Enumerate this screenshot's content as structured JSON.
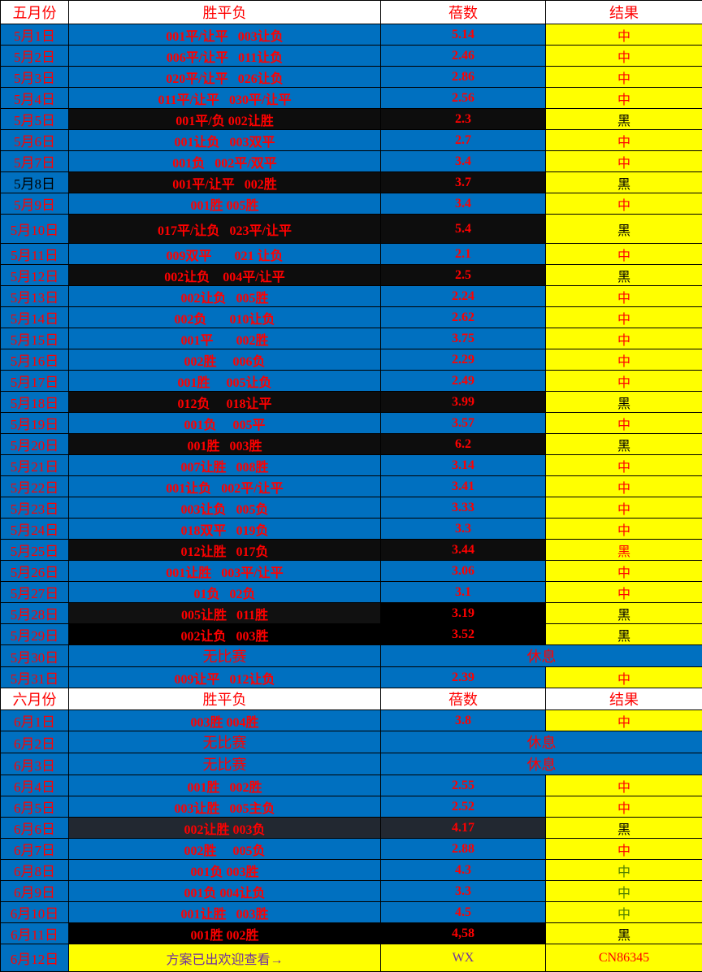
{
  "colors": {
    "blue": "#0070c0",
    "yellow": "#ffff00",
    "red": "#ff0000",
    "dark": "#0d0d0d",
    "black": "#000000",
    "slate": "#222831",
    "green": "#4f7f00",
    "purple": "#7030a0"
  },
  "may_header": {
    "month": "五月份",
    "picks": "胜平负",
    "odds": "蓓数",
    "result": "结果"
  },
  "may_rows": [
    {
      "date": "5月1日",
      "picks": "001平/让平   003让负",
      "odds": "5.14",
      "result": "中",
      "bg": "#0070c0",
      "result_color": "#ff0000"
    },
    {
      "date": "5月2日",
      "picks": "006平/让平   011让负",
      "odds": "2.46",
      "result": "中",
      "bg": "#0070c0",
      "result_color": "#ff0000"
    },
    {
      "date": "5月3日",
      "picks": "020平/让平   026让负",
      "odds": "2.86",
      "result": "中",
      "bg": "#0070c0",
      "result_color": "#ff0000"
    },
    {
      "date": "5月4日",
      "picks": "011平/让平   030平/让平",
      "odds": "2.56",
      "result": "中",
      "bg": "#0070c0",
      "result_color": "#ff0000"
    },
    {
      "date": "5月5日",
      "picks": "001平/负 002让胜",
      "odds": "2.3",
      "result": "黑",
      "bg": "#0d0d0d",
      "result_color": "#000000"
    },
    {
      "date": "5月6日",
      "picks": "001让负   003双平",
      "odds": "2.7",
      "result": "中",
      "bg": "#0070c0",
      "result_color": "#ff0000"
    },
    {
      "date": "5月7日",
      "picks": "001负   002平/双平",
      "odds": "3.4",
      "result": "中",
      "bg": "#0070c0",
      "result_color": "#ff0000"
    },
    {
      "date": "5月8日",
      "picks": "001平/让平   002胜",
      "odds": "3.7",
      "result": "黑",
      "bg": "#0d0d0d",
      "result_color": "#000000",
      "date_color": "#000000"
    },
    {
      "date": "5月9日",
      "picks": "001胜 005胜",
      "odds": "3.4",
      "result": "中",
      "bg": "#0070c0",
      "result_color": "#ff0000"
    },
    {
      "date": "5月10日",
      "picks": "017平/让负   023平/让平",
      "odds": "5.4",
      "result": "黑",
      "bg": "#0d0d0d",
      "result_color": "#000000",
      "tall": true
    },
    {
      "date": "5月11日",
      "picks": "009双平       021 让负",
      "odds": "2.1",
      "result": "中",
      "bg": "#0070c0",
      "result_color": "#ff0000"
    },
    {
      "date": "5月12日",
      "picks": "002让负    004平/让平",
      "odds": "2.5",
      "result": "黑",
      "bg": "#0d0d0d",
      "result_color": "#000000"
    },
    {
      "date": "5月13日",
      "picks": "002让负   005胜",
      "odds": "2.24",
      "result": "中",
      "bg": "#0070c0",
      "result_color": "#ff0000"
    },
    {
      "date": "5月14日",
      "picks": "002负       010让负",
      "odds": "2.62",
      "result": "中",
      "bg": "#0070c0",
      "result_color": "#ff0000"
    },
    {
      "date": "5月15日",
      "picks": "001平       002胜",
      "odds": "3.75",
      "result": "中",
      "bg": "#0070c0",
      "result_color": "#ff0000"
    },
    {
      "date": "5月16日",
      "picks": "002胜     006负",
      "odds": "2.29",
      "result": "中",
      "bg": "#0070c0",
      "result_color": "#ff0000"
    },
    {
      "date": "5月17日",
      "picks": "001胜     005让负",
      "odds": "2.49",
      "result": "中",
      "bg": "#0070c0",
      "result_color": "#ff0000"
    },
    {
      "date": "5月18日",
      "picks": "012负     018让平",
      "odds": "3.99",
      "result": "黑",
      "bg": "#0d0d0d",
      "result_color": "#000000"
    },
    {
      "date": "5月19日",
      "picks": "001负     005平",
      "odds": "3.57",
      "result": "中",
      "bg": "#0070c0",
      "result_color": "#ff0000"
    },
    {
      "date": "5月20日",
      "picks": "001胜   003胜",
      "odds": "6.2",
      "result": "黑",
      "bg": "#0d0d0d",
      "result_color": "#000000"
    },
    {
      "date": "5月21日",
      "picks": "007让胜   008胜",
      "odds": "3.14",
      "result": "中",
      "bg": "#0070c0",
      "result_color": "#ff0000"
    },
    {
      "date": "5月22日",
      "picks": "001让负   002平/让平",
      "odds": "3.41",
      "result": "中",
      "bg": "#0070c0",
      "result_color": "#ff0000"
    },
    {
      "date": "5月23日",
      "picks": "003让负   005负",
      "odds": "3.33",
      "result": "中",
      "bg": "#0070c0",
      "result_color": "#ff0000"
    },
    {
      "date": "5月24日",
      "picks": "018双平   019负",
      "odds": "3.3",
      "result": "中",
      "bg": "#0070c0",
      "result_color": "#ff0000"
    },
    {
      "date": "5月25日",
      "picks": "012让胜   017负",
      "odds": "3.44",
      "result": "黑",
      "bg": "#0d0d0d",
      "result_color": "#ff0000"
    },
    {
      "date": "5月26日",
      "picks": "001让胜   003平/让平",
      "odds": "3.06",
      "result": "中",
      "bg": "#0070c0",
      "result_color": "#ff0000"
    },
    {
      "date": "5月27日",
      "picks": "01负   02负",
      "odds": "3.1",
      "result": "中",
      "bg": "#0070c0",
      "result_color": "#ff0000"
    },
    {
      "date": "5月28日",
      "picks": "005让胜   011胜",
      "odds": "3.19",
      "result": "黑",
      "bg": "#111111",
      "odds_bg": "#000000",
      "result_color": "#000000"
    },
    {
      "date": "5月29日",
      "picks": "002让负   003胜",
      "odds": "3.52",
      "result": "黑",
      "bg": "#000000",
      "result_color": "#000000"
    },
    {
      "date": "5月30日",
      "picks": "无比赛",
      "rest": "休息",
      "bg": "#0070c0"
    },
    {
      "date": "5月31日",
      "picks": "009让平   012让负",
      "odds": "2.39",
      "result": "中",
      "bg": "#0070c0",
      "result_color": "#ff0000"
    }
  ],
  "june_header": {
    "month": "六月份",
    "picks": "胜平负",
    "odds": "蓓数",
    "result": "结果"
  },
  "june_rows": [
    {
      "date": "6月1日",
      "picks": "003胜 004胜",
      "odds": "3.8",
      "result": "中",
      "bg": "#0070c0",
      "result_color": "#ff0000"
    },
    {
      "date": "6月2日",
      "picks": "无比赛",
      "rest": "休息",
      "bg": "#0070c0"
    },
    {
      "date": "6月3日",
      "picks": "无比赛",
      "rest": "休息",
      "bg": "#0070c0"
    },
    {
      "date": "6月4日",
      "picks": "001胜   002胜",
      "odds": "2.55",
      "result": "中",
      "bg": "#0070c0",
      "result_color": "#ff0000"
    },
    {
      "date": "6月5日",
      "picks": "003让胜   005主负",
      "odds": "2.52",
      "result": "中",
      "bg": "#0070c0",
      "result_color": "#ff0000"
    },
    {
      "date": "6月6日",
      "picks": "002让胜 003负",
      "odds": "4.17",
      "result": "黑",
      "bg": "#222831",
      "result_color": "#000000"
    },
    {
      "date": "6月7日",
      "picks": "002胜     005负",
      "odds": "2.88",
      "result": "中",
      "bg": "#0070c0",
      "result_color": "#ff0000"
    },
    {
      "date": "6月8日",
      "picks": "001负 003胜",
      "odds": "4.3",
      "result": "中",
      "bg": "#0070c0",
      "result_color": "#4f7f00"
    },
    {
      "date": "6月9日",
      "picks": "001负 004让负",
      "odds": "3.3",
      "result": "中",
      "bg": "#0070c0",
      "result_color": "#4f7f00"
    },
    {
      "date": "6月10日",
      "picks": "001让胜   003胜",
      "odds": "4.5",
      "result": "中",
      "bg": "#0070c0",
      "result_color": "#4f7f00"
    },
    {
      "date": "6月11日",
      "picks": "001胜 002胜",
      "odds": "4,58",
      "result": "黑",
      "bg": "#000000",
      "result_color": "#000000"
    }
  ],
  "promo": {
    "date": "6月12日",
    "text": "方案已出欢迎查看→",
    "wx": "WX",
    "id": "CN86345"
  }
}
